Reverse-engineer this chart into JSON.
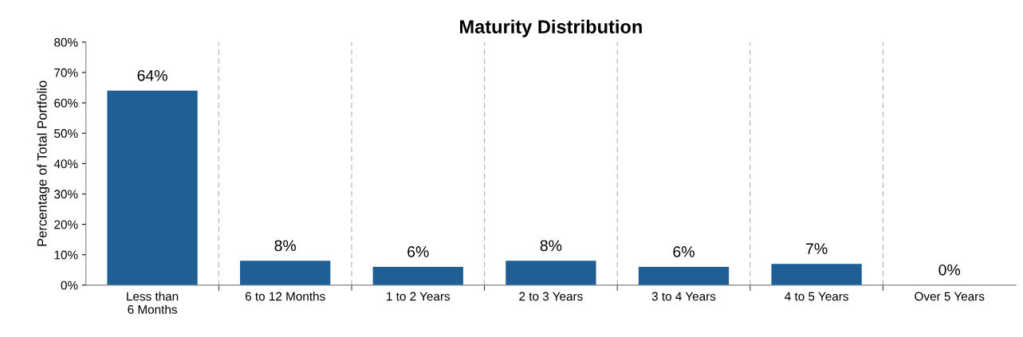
{
  "chart_data": {
    "type": "bar",
    "title": "Maturity Distribution",
    "ylabel": "Percentage of Total Portfolio",
    "categories": [
      "Less than\n6 Months",
      "6 to 12 Months",
      "1 to 2 Years",
      "2 to 3 Years",
      "3 to 4 Years",
      "4 to 5 Years",
      "Over 5 Years"
    ],
    "values": [
      64,
      8,
      6,
      8,
      6,
      7,
      0
    ],
    "color": "#1f5f96",
    "ylim": [
      0,
      80
    ],
    "yticks": [
      {
        "value": 0,
        "label": "0%"
      },
      {
        "value": 10,
        "label": "10%"
      },
      {
        "value": 20,
        "label": "20%"
      },
      {
        "value": 30,
        "label": "30%"
      },
      {
        "value": 40,
        "label": "40%"
      },
      {
        "value": 50,
        "label": "50%"
      },
      {
        "value": 60,
        "label": "60%"
      },
      {
        "value": 70,
        "label": "70%"
      },
      {
        "value": 80,
        "label": "80%"
      }
    ],
    "value_labels": [
      "64%",
      "8%",
      "6%",
      "8%",
      "6%",
      "7%",
      "0%"
    ],
    "grid": "x",
    "legend": false
  }
}
